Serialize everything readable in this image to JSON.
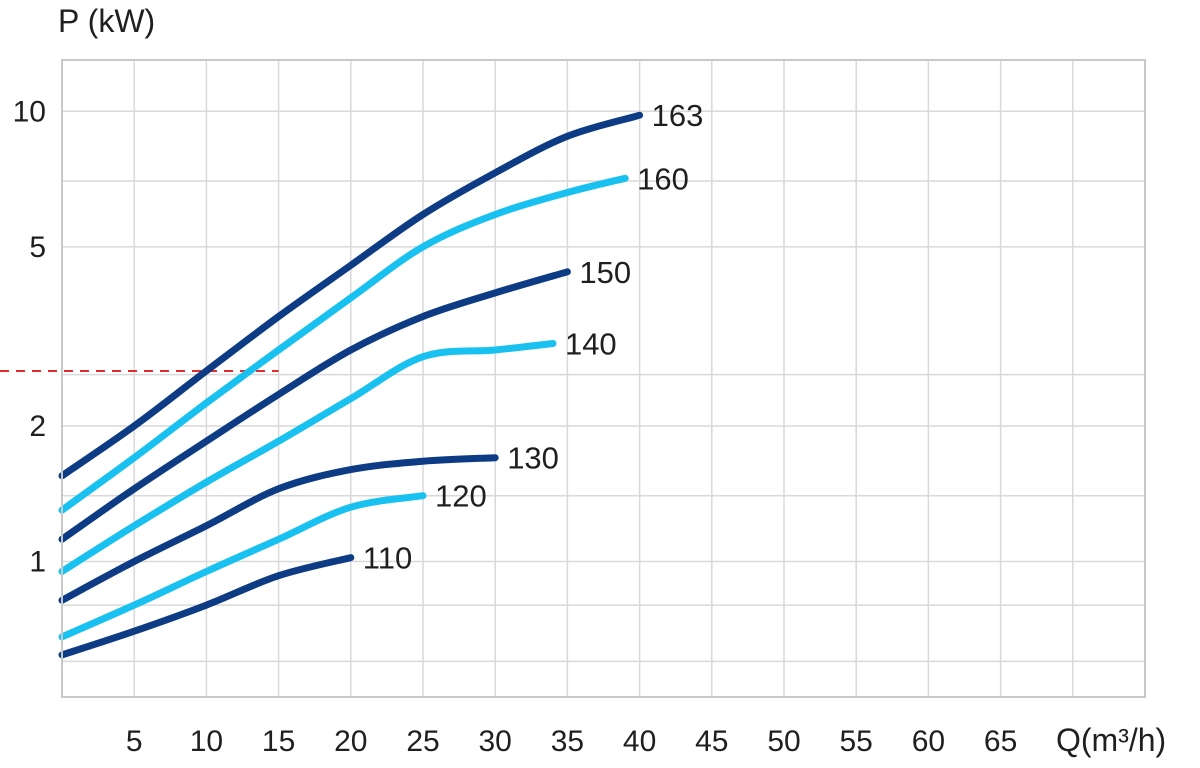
{
  "chart_data": {
    "type": "line",
    "ylabel": "P (kW)",
    "xlabel": "Q(m³/h)",
    "xlim": [
      0,
      75
    ],
    "ylim": [
      0.5,
      13
    ],
    "y_scale": "log",
    "grid": true,
    "x_ticks": [
      5,
      10,
      15,
      20,
      25,
      30,
      35,
      40,
      45,
      50,
      55,
      60,
      65
    ],
    "x_tick_labels": [
      "5",
      "10",
      "15",
      "20",
      "25",
      "30",
      "35",
      "40",
      "45",
      "50",
      "55",
      "60",
      "65"
    ],
    "y_ticks": [
      1,
      2,
      5,
      10
    ],
    "y_tick_labels": [
      "1",
      "2",
      "5",
      "10"
    ],
    "colors": {
      "dark": "#0d3b84",
      "light": "#19c1f0",
      "reference": "#e32b2b",
      "grid": "#d9d9d9"
    },
    "reference_line": {
      "y": 2.65,
      "x_to": 15
    },
    "series": [
      {
        "name": "163",
        "color": "#0d3b84",
        "x": [
          0,
          5,
          10,
          15,
          20,
          25,
          30,
          35,
          40
        ],
        "y": [
          1.55,
          2.0,
          2.65,
          3.5,
          4.55,
          5.9,
          7.3,
          8.8,
          9.8
        ]
      },
      {
        "name": "160",
        "color": "#19c1f0",
        "x": [
          0,
          5,
          10,
          15,
          20,
          25,
          30,
          35,
          39
        ],
        "y": [
          1.3,
          1.7,
          2.25,
          2.95,
          3.85,
          5.0,
          5.9,
          6.6,
          7.1
        ]
      },
      {
        "name": "150",
        "color": "#0d3b84",
        "x": [
          0,
          5,
          10,
          15,
          20,
          25,
          30,
          35
        ],
        "y": [
          1.12,
          1.45,
          1.85,
          2.35,
          2.95,
          3.5,
          3.95,
          4.4
        ]
      },
      {
        "name": "140",
        "color": "#19c1f0",
        "x": [
          0,
          5,
          10,
          15,
          20,
          25,
          30,
          34
        ],
        "y": [
          0.95,
          1.2,
          1.5,
          1.85,
          2.3,
          2.85,
          2.95,
          3.05
        ]
      },
      {
        "name": "130",
        "color": "#0d3b84",
        "x": [
          0,
          5,
          10,
          15,
          20,
          25,
          30
        ],
        "y": [
          0.82,
          1.0,
          1.2,
          1.45,
          1.6,
          1.67,
          1.7
        ]
      },
      {
        "name": "120",
        "color": "#19c1f0",
        "x": [
          0,
          5,
          10,
          15,
          20,
          25
        ],
        "y": [
          0.68,
          0.8,
          0.95,
          1.12,
          1.32,
          1.4
        ]
      },
      {
        "name": "110",
        "color": "#0d3b84",
        "x": [
          0,
          5,
          10,
          15,
          20
        ],
        "y": [
          0.62,
          0.7,
          0.8,
          0.93,
          1.02
        ]
      }
    ]
  }
}
